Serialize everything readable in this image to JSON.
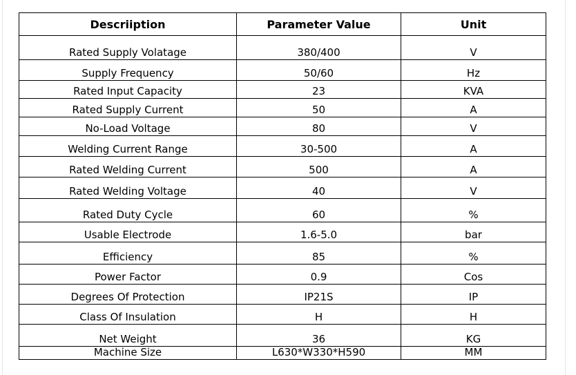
{
  "table": {
    "headers": [
      "Descriiption",
      "Parameter Value",
      "Unit"
    ],
    "rows": [
      [
        "Rated Supply Volatage",
        "380/400",
        "V"
      ],
      [
        "Supply Frequency",
        "50/60",
        "Hz"
      ],
      [
        "Rated Input Capacity",
        "23",
        "KVA"
      ],
      [
        "Rated Supply Current",
        "50",
        "A"
      ],
      [
        "No-Load Voltage",
        "80",
        "V"
      ],
      [
        "Welding Current Range",
        "30-500",
        "A"
      ],
      [
        "Rated Welding Current",
        "500",
        "A"
      ],
      [
        "Rated Welding Voltage",
        "40",
        "V"
      ],
      [
        "Rated Duty Cycle",
        "60",
        "%"
      ],
      [
        "Usable Electrode",
        "1.6-5.0",
        "bar"
      ],
      [
        "Efficiency",
        "85",
        "%"
      ],
      [
        "Power Factor",
        "0.9",
        "Cos"
      ],
      [
        "Degrees Of Protection",
        "IP21S",
        "IP"
      ],
      [
        "Class Of Insulation",
        "H",
        "H"
      ],
      [
        "Net Weight",
        "36",
        "KG"
      ],
      [
        "Machine Size",
        "L630*W330*H590",
        "MM"
      ]
    ]
  }
}
